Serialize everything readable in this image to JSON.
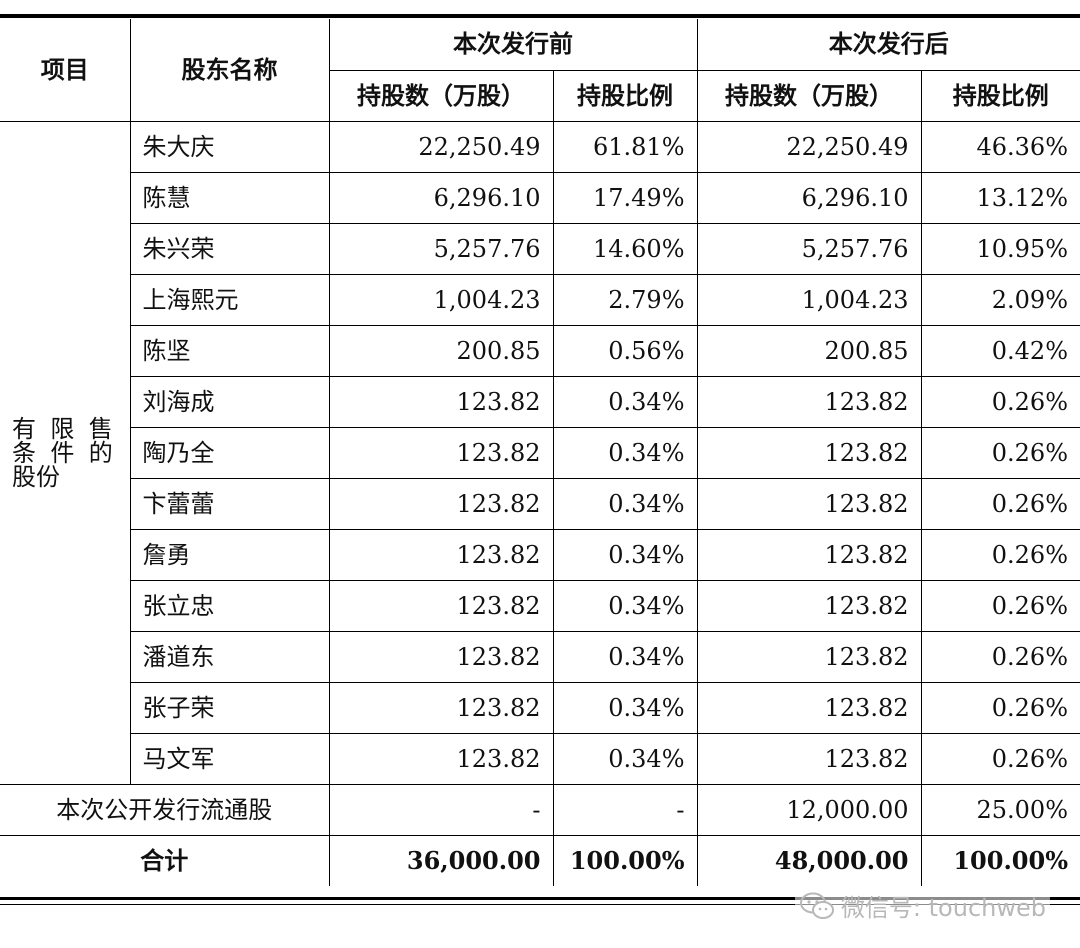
{
  "table": {
    "header": {
      "item": "项目",
      "shareholder": "股东名称",
      "before": "本次发行前",
      "after": "本次发行后",
      "shares_before": "持股数（万股）",
      "ratio_before": "持股比例",
      "shares_after": "持股数（万股）",
      "ratio_after": "持股比例"
    },
    "category": {
      "line1": "有限售",
      "line2": "条件的",
      "line3": "股份"
    },
    "rows": [
      {
        "name": "朱大庆",
        "shares_before": "22,250.49",
        "ratio_before": "61.81%",
        "shares_after": "22,250.49",
        "ratio_after": "46.36%"
      },
      {
        "name": "陈慧",
        "shares_before": "6,296.10",
        "ratio_before": "17.49%",
        "shares_after": "6,296.10",
        "ratio_after": "13.12%"
      },
      {
        "name": "朱兴荣",
        "shares_before": "5,257.76",
        "ratio_before": "14.60%",
        "shares_after": "5,257.76",
        "ratio_after": "10.95%"
      },
      {
        "name": "上海熙元",
        "shares_before": "1,004.23",
        "ratio_before": "2.79%",
        "shares_after": "1,004.23",
        "ratio_after": "2.09%"
      },
      {
        "name": "陈坚",
        "shares_before": "200.85",
        "ratio_before": "0.56%",
        "shares_after": "200.85",
        "ratio_after": "0.42%"
      },
      {
        "name": "刘海成",
        "shares_before": "123.82",
        "ratio_before": "0.34%",
        "shares_after": "123.82",
        "ratio_after": "0.26%"
      },
      {
        "name": "陶乃全",
        "shares_before": "123.82",
        "ratio_before": "0.34%",
        "shares_after": "123.82",
        "ratio_after": "0.26%"
      },
      {
        "name": "卞蕾蕾",
        "shares_before": "123.82",
        "ratio_before": "0.34%",
        "shares_after": "123.82",
        "ratio_after": "0.26%"
      },
      {
        "name": "詹勇",
        "shares_before": "123.82",
        "ratio_before": "0.34%",
        "shares_after": "123.82",
        "ratio_after": "0.26%"
      },
      {
        "name": "张立忠",
        "shares_before": "123.82",
        "ratio_before": "0.34%",
        "shares_after": "123.82",
        "ratio_after": "0.26%"
      },
      {
        "name": "潘道东",
        "shares_before": "123.82",
        "ratio_before": "0.34%",
        "shares_after": "123.82",
        "ratio_after": "0.26%"
      },
      {
        "name": "张子荣",
        "shares_before": "123.82",
        "ratio_before": "0.34%",
        "shares_after": "123.82",
        "ratio_after": "0.26%"
      },
      {
        "name": "马文军",
        "shares_before": "123.82",
        "ratio_before": "0.34%",
        "shares_after": "123.82",
        "ratio_after": "0.26%"
      }
    ],
    "public_offering": {
      "label": "本次公开发行流通股",
      "shares_before": "-",
      "ratio_before": "-",
      "shares_after": "12,000.00",
      "ratio_after": "25.00%"
    },
    "total": {
      "label": "合计",
      "shares_before": "36,000.00",
      "ratio_before": "100.00%",
      "shares_after": "48,000.00",
      "ratio_after": "100.00%"
    }
  },
  "watermark": {
    "icon": "wechat-icon",
    "text": "微信号: touchweb",
    "color": "#b8b8b8"
  }
}
